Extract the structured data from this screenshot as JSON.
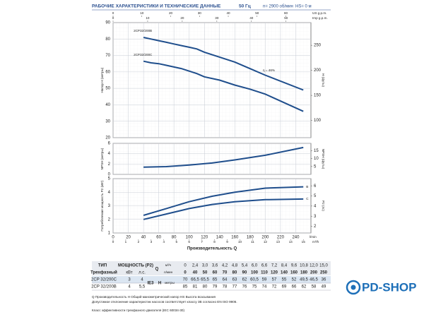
{
  "header": {
    "title": "РАБОЧИЕ ХАРАКТЕРИСТИКИ И ТЕХНИЧЕСКИЕ ДАННЫЕ",
    "frequency": "50 Гц",
    "speed": "n= 2900 об/мин",
    "suction": "HS= 0 м"
  },
  "chart_data": [
    {
      "type": "line",
      "y_label": "Напор H (метры)",
      "y2_label": "H (футы)",
      "ylim": [
        20,
        90
      ],
      "yticks": [
        20,
        30,
        40,
        50,
        60,
        70,
        80,
        90
      ],
      "y2lim": [
        65.6,
        295.3
      ],
      "y2ticks": [
        100,
        150,
        200,
        250
      ],
      "annotation": "η = 46%",
      "top_axes": [
        {
          "unit": "US g.p.m.",
          "lim": [
            0,
            68.7
          ],
          "ticks": [
            0,
            10,
            20,
            30,
            40,
            50,
            60
          ]
        },
        {
          "unit": "Imp g.p.m.",
          "lim": [
            0,
            57.2
          ],
          "ticks": [
            0,
            10,
            20,
            30,
            40,
            50
          ]
        }
      ],
      "series": [
        {
          "name": "2CP32/200C",
          "color": "#1f4e8c"
        },
        {
          "name": "2CP32/200B",
          "color": "#1f4e8c"
        }
      ]
    },
    {
      "type": "line",
      "y_label": "NPSH (метры)",
      "y2_label": "NPSH (футы)",
      "ylim": [
        0,
        6
      ],
      "yticks": [
        0,
        2,
        4,
        6
      ],
      "y2lim": [
        0,
        19.7
      ],
      "y2ticks": [
        5,
        10,
        15
      ],
      "series": [
        {
          "color": "#1f4e8c",
          "x": [
            40,
            70,
            100,
            130,
            160,
            200,
            250
          ],
          "values": [
            1.4,
            1.5,
            1.8,
            2.2,
            2.8,
            3.7,
            5.2
          ]
        }
      ]
    },
    {
      "type": "line",
      "y_label": "Потребляемая мощность P2 (кВт)",
      "y2_label": "P2 (лс)",
      "ylim": [
        1,
        5
      ],
      "yticks": [
        1,
        2,
        3,
        4,
        5
      ],
      "y2lim": [
        1.34,
        6.71
      ],
      "y2ticks": [
        2,
        3,
        4,
        5,
        6
      ],
      "xlim": [
        0,
        260
      ],
      "xticks": [
        0,
        20,
        40,
        60,
        80,
        100,
        120,
        140,
        160,
        180,
        200,
        220,
        240
      ],
      "x_unit": "l/min",
      "x_label": "Производительность Q",
      "bottom_axes": [
        {
          "unit": "m³/h",
          "lim": [
            0,
            15.6
          ],
          "ticks": [
            0,
            1,
            2,
            3,
            4,
            5,
            6,
            7,
            8,
            9,
            10,
            11,
            12,
            13,
            14,
            15
          ]
        }
      ],
      "series": [
        {
          "name": "B",
          "color": "#1f4e8c",
          "x": [
            40,
            70,
            100,
            130,
            160,
            200,
            250
          ],
          "values": [
            2.3,
            2.8,
            3.3,
            3.7,
            4.0,
            4.3,
            4.4
          ]
        },
        {
          "name": "C",
          "color": "#1f4e8c",
          "x": [
            40,
            70,
            100,
            130,
            160,
            200,
            250
          ],
          "values": [
            2.0,
            2.4,
            2.8,
            3.1,
            3.3,
            3.45,
            3.5
          ]
        }
      ]
    }
  ],
  "table": {
    "type_header": "ТИП",
    "power_header": "МОЩНОСТЬ (P2)",
    "q_symbol": "Q",
    "q_units": [
      "м³/ч",
      "л/мин"
    ],
    "phase": "Трехфазный",
    "power_units": [
      "кВт",
      "л.с."
    ],
    "ie": "IE3",
    "h_symbol": "H",
    "h_unit": "метры",
    "q_m3h": [
      "0",
      "2,4",
      "3,0",
      "3,6",
      "4,2",
      "4,8",
      "5,4",
      "6,0",
      "6,6",
      "7,2",
      "8,4",
      "9,6",
      "10,8",
      "12,0",
      "15,0"
    ],
    "q_lmin": [
      0,
      40,
      50,
      60,
      70,
      80,
      90,
      100,
      110,
      120,
      140,
      160,
      180,
      200,
      250
    ],
    "rows": [
      {
        "model": "2CP 32/200C",
        "kw": 3,
        "hp": 4,
        "h": [
          70,
          {
            "value": 66.5,
            "label": "66,5"
          },
          {
            "value": 65.5,
            "label": "65,5"
          },
          65,
          64,
          63,
          62,
          {
            "value": 60.5,
            "label": "60,5"
          },
          59,
          57,
          55,
          52,
          {
            "value": 49.5,
            "label": "49,5"
          },
          {
            "value": 46.5,
            "label": "46,5"
          },
          36
        ]
      },
      {
        "model": "2CP 32/200B",
        "kw": 4,
        "hp": {
          "value": 5.5,
          "label": "5,5"
        },
        "h": [
          85,
          81,
          80,
          79,
          78,
          77,
          76,
          75,
          74,
          72,
          69,
          66,
          62,
          58,
          49
        ]
      }
    ]
  },
  "notes": [
    "Q  Производительность   H  Общий манометрический напор   HS  Высота всасывания",
    "Допустимое отклонение характеристик насосов соответствует классу 3B согласно EN ISO 9906.",
    "Класс эффективности трехфазного двигателя (IEC 60034-30)"
  ],
  "logo": "PD-SHOP"
}
